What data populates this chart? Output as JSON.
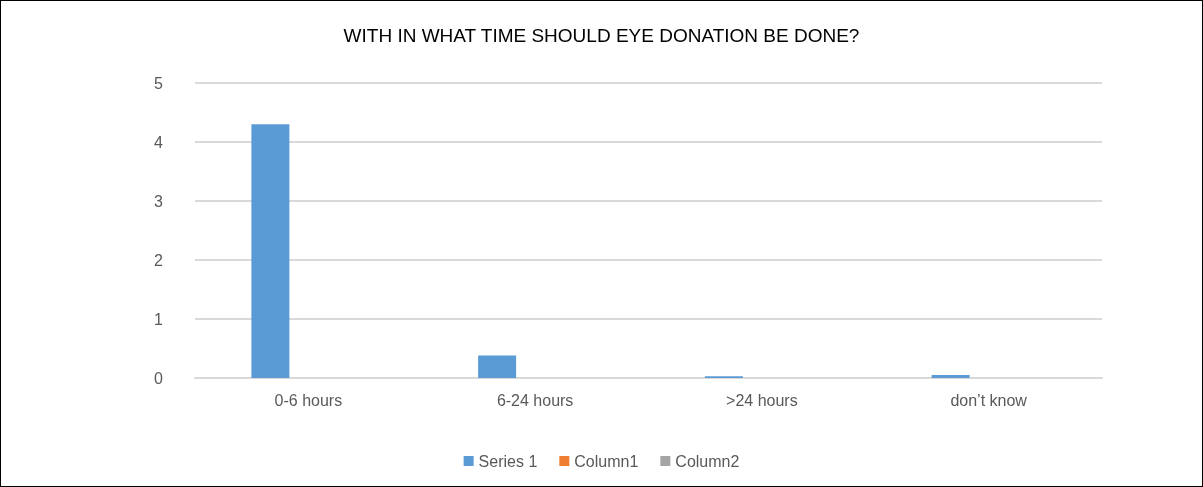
{
  "chart_data": {
    "type": "bar",
    "title": "WITH IN WHAT TIME SHOULD EYE DONATION BE DONE?",
    "categories": [
      "0-6 hours",
      "6-24 hours",
      ">24 hours",
      "don’t know"
    ],
    "series": [
      {
        "name": "Series 1",
        "color": "#5b9bd5",
        "values": [
          4.3,
          0.38,
          0.03,
          0.05
        ]
      },
      {
        "name": "Column1",
        "color": "#ed7d31",
        "values": [
          null,
          null,
          null,
          null
        ]
      },
      {
        "name": "Column2",
        "color": "#a5a5a5",
        "values": [
          null,
          null,
          null,
          null
        ]
      }
    ],
    "ylim": [
      0,
      5
    ],
    "yticks": [
      0,
      1,
      2,
      3,
      4,
      5
    ],
    "grid": "y",
    "legend": "bottom"
  }
}
